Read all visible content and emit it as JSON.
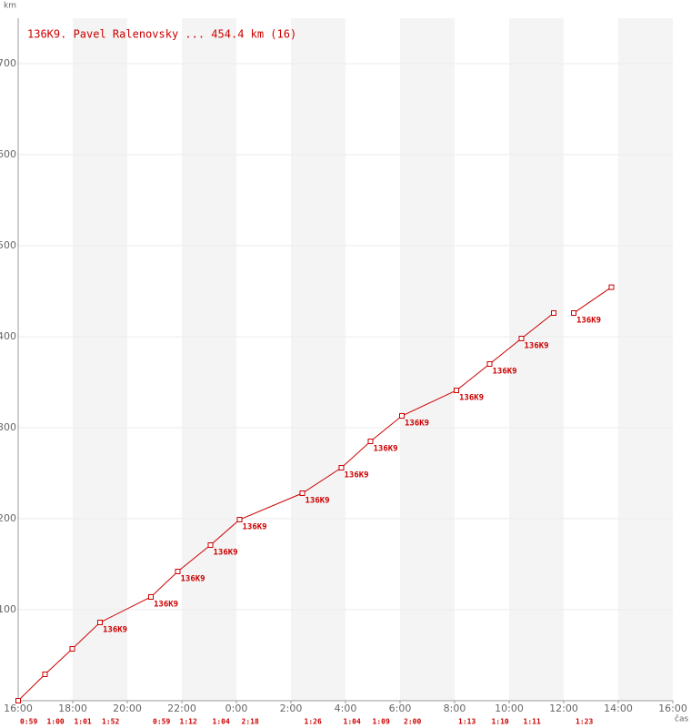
{
  "chart_data": {
    "type": "line",
    "title": "136K9. Pavel Ralenovsky ... 454.4 km (16)",
    "y_label": "km",
    "x_label": "čas",
    "xlim": [
      0,
      24
    ],
    "xticks": [
      {
        "value": 0,
        "label": "16:00"
      },
      {
        "value": 2,
        "label": "18:00"
      },
      {
        "value": 4,
        "label": "20:00"
      },
      {
        "value": 6,
        "label": "22:00"
      },
      {
        "value": 8,
        "label": "0:00"
      },
      {
        "value": 10,
        "label": "2:00"
      },
      {
        "value": 12,
        "label": "4:00"
      },
      {
        "value": 14,
        "label": "6:00"
      },
      {
        "value": 16,
        "label": "8:00"
      },
      {
        "value": 18,
        "label": "10:00"
      },
      {
        "value": 20,
        "label": "12:00"
      },
      {
        "value": 22,
        "label": "14:00"
      },
      {
        "value": 24,
        "label": "16:00"
      }
    ],
    "ylim": [
      0,
      750
    ],
    "yticks": [
      100,
      200,
      300,
      400,
      500,
      600,
      700
    ],
    "grid": true,
    "color": "#cc0000",
    "x": [
      0,
      0.983,
      1.983,
      3.0,
      4.867,
      5.85,
      7.05,
      8.117,
      10.417,
      11.85,
      12.917,
      14.067,
      16.067,
      17.283,
      18.45,
      19.633,
      null,
      20.367,
      21.75
    ],
    "values": [
      0,
      29,
      57,
      86,
      114,
      142,
      171,
      199,
      228,
      256,
      285,
      313,
      341,
      370,
      398,
      426,
      null,
      426,
      454.4
    ],
    "point_labels": [
      null,
      null,
      null,
      "136K9",
      "136K9",
      "136K9",
      "136K9",
      "136K9",
      "136K9",
      "136K9",
      "136K9",
      "136K9",
      "136K9",
      "136K9",
      "136K9",
      null,
      null,
      "136K9",
      null
    ],
    "durations": [
      "0:59",
      "1:00",
      "1:01",
      "1:52",
      "0:59",
      "1:12",
      "1:04",
      "2:18",
      "1:26",
      "1:04",
      "1:09",
      "2:00",
      "1:13",
      "1:10",
      "1:11",
      null,
      null,
      "1:23",
      null
    ]
  }
}
